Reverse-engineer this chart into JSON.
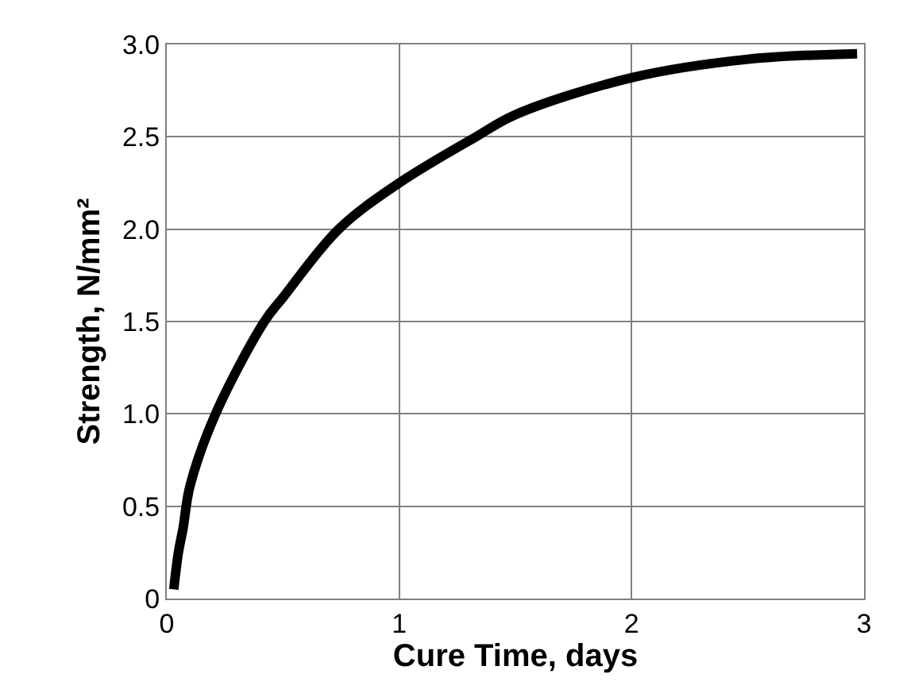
{
  "chart_data": {
    "type": "line",
    "xlabel": "Cure Time, days",
    "ylabel": "Strength, N/mm²",
    "x": [
      0.03,
      0.05,
      0.07,
      0.1,
      0.21,
      0.42,
      0.5,
      0.74,
      1.0,
      1.33,
      1.5,
      2.0,
      2.5,
      2.97
    ],
    "series": [
      {
        "color": "#000000",
        "values": [
          0.05,
          0.25,
          0.38,
          0.61,
          1.0,
          1.5,
          1.63,
          2.0,
          2.25,
          2.5,
          2.62,
          2.82,
          2.92,
          2.95
        ]
      }
    ],
    "xlim": [
      0,
      3
    ],
    "ylim": [
      0,
      3
    ],
    "xticks": [
      0,
      1,
      2,
      3
    ],
    "yticks": [
      0,
      {
        "value": 0.5,
        "label": "0.5"
      },
      {
        "value": 1,
        "label": "1.0"
      },
      {
        "value": 1.5,
        "label": "1.5"
      },
      {
        "value": 2,
        "label": "2.0"
      },
      {
        "value": 2.5,
        "label": "2.5"
      },
      {
        "value": 3,
        "label": "3.0"
      }
    ],
    "grid": true,
    "legend": false,
    "marker": "none",
    "line_style": "solid"
  }
}
